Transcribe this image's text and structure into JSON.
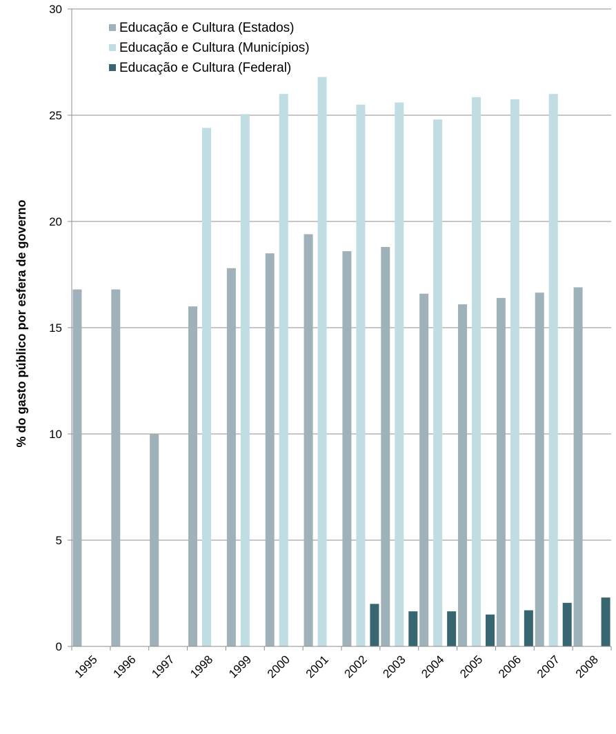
{
  "chart_data": {
    "type": "bar",
    "title": "",
    "xlabel": "",
    "ylabel": "% do gasto público por esfera de governo",
    "ylim": [
      0,
      30
    ],
    "yticks": [
      0,
      5,
      10,
      15,
      20,
      25,
      30
    ],
    "grid": true,
    "legend_position": "top-left",
    "categories": [
      "1995",
      "1996",
      "1997",
      "1998",
      "1999",
      "2000",
      "2001",
      "2002",
      "2003",
      "2004",
      "2005",
      "2006",
      "2007",
      "2008"
    ],
    "series": [
      {
        "name": "Educação e Cultura (Estados)",
        "color": "#A0B2B9",
        "values": [
          16.8,
          16.8,
          10.0,
          16.0,
          17.8,
          18.5,
          19.4,
          18.6,
          18.8,
          16.6,
          16.1,
          16.4,
          16.65,
          16.9
        ]
      },
      {
        "name": "Educação e Cultura (Municípios)",
        "color": "#BFDDE3",
        "values": [
          null,
          null,
          null,
          24.4,
          25.05,
          26.0,
          26.8,
          25.5,
          25.6,
          24.8,
          25.85,
          25.75,
          26.0,
          null
        ]
      },
      {
        "name": "Educação e Cultura (Federal)",
        "color": "#376670",
        "values": [
          null,
          null,
          null,
          null,
          null,
          null,
          null,
          2.0,
          1.65,
          1.65,
          1.5,
          1.7,
          2.05,
          2.3
        ]
      }
    ]
  }
}
